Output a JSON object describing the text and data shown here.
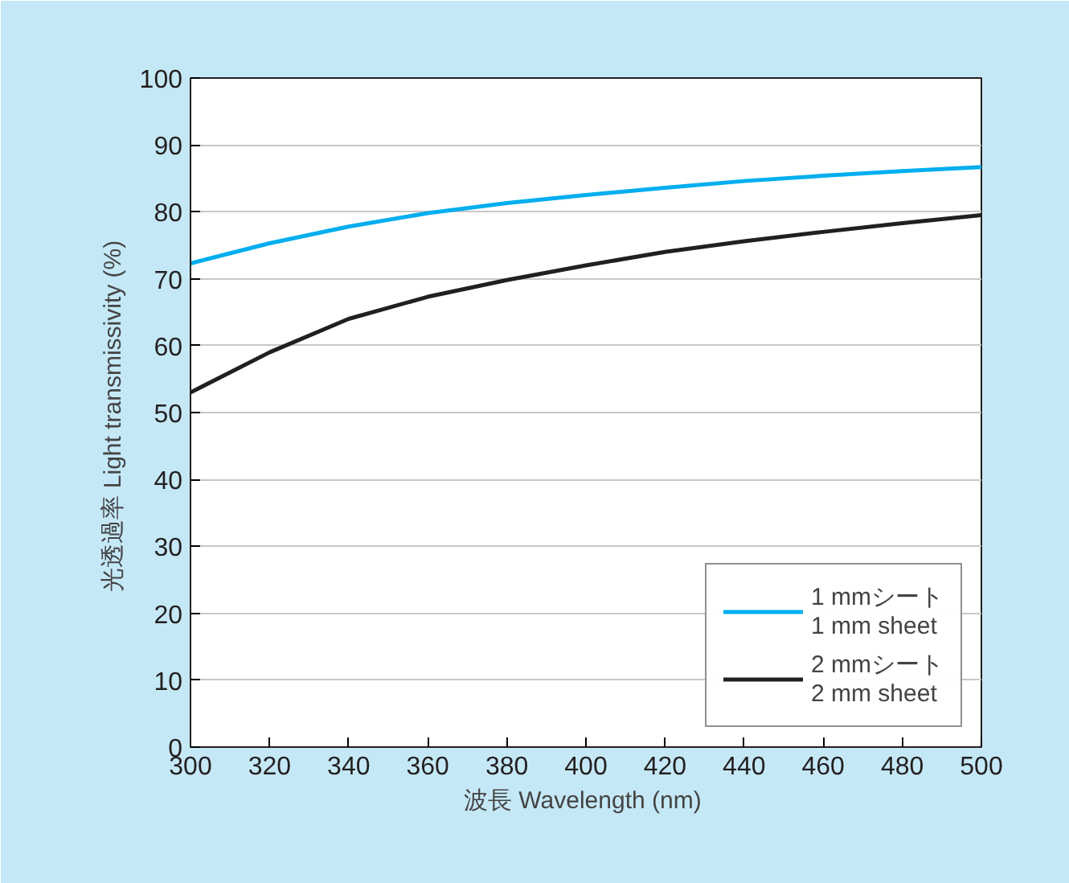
{
  "chart_data": {
    "type": "line",
    "xlabel": "波長  Wavelength (nm)",
    "ylabel": "光透過率  Light transmissivity (%)",
    "x": [
      300,
      320,
      340,
      360,
      380,
      400,
      420,
      440,
      460,
      480,
      500
    ],
    "series": [
      {
        "name": "1 mmシート\n1 mm sheet",
        "color": "#00aeef",
        "values": [
          72.3,
          75.3,
          77.8,
          79.8,
          81.3,
          82.5,
          83.6,
          84.6,
          85.4,
          86.1,
          86.7
        ]
      },
      {
        "name": "2 mmシート\n2 mm sheet",
        "color": "#231f20",
        "values": [
          53,
          59,
          64,
          67.3,
          69.8,
          72,
          74,
          75.6,
          77,
          78.3,
          79.5
        ]
      }
    ],
    "xlim": [
      300,
      500
    ],
    "ylim": [
      0,
      100
    ],
    "xticks": [
      300,
      320,
      340,
      360,
      380,
      400,
      420,
      440,
      460,
      480,
      500
    ],
    "yticks": [
      0,
      10,
      20,
      30,
      40,
      50,
      60,
      70,
      80,
      90,
      100
    ],
    "grid": "y",
    "legend": "bottom right",
    "marker": "none",
    "line_style": "solid"
  }
}
